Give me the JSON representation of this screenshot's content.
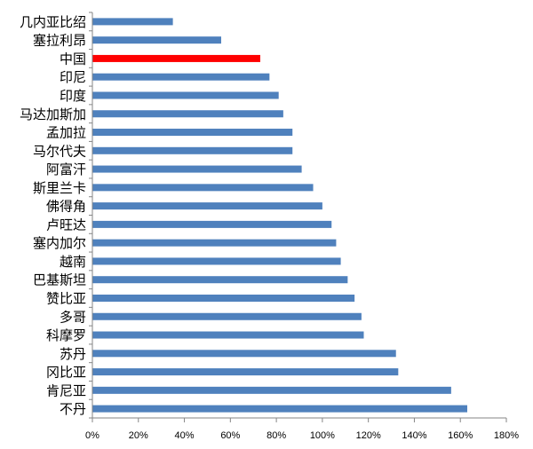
{
  "chart_data": {
    "type": "bar",
    "orientation": "horizontal",
    "categories": [
      "几内亚比绍",
      "塞拉利昂",
      "中国",
      "印尼",
      "印度",
      "马达加斯加",
      "孟加拉",
      "马尔代夫",
      "阿富汗",
      "斯里兰卡",
      "佛得角",
      "卢旺达",
      "塞内加尔",
      "越南",
      "巴基斯坦",
      "赞比亚",
      "多哥",
      "科摩罗",
      "苏丹",
      "冈比亚",
      "肯尼亚",
      "不丹"
    ],
    "values": [
      35,
      56,
      73,
      77,
      81,
      83,
      87,
      87,
      91,
      96,
      100,
      104,
      106,
      108,
      111,
      114,
      117,
      118,
      132,
      133,
      156,
      163
    ],
    "xlim": [
      0,
      180
    ],
    "xticks": [
      0,
      20,
      40,
      60,
      80,
      100,
      120,
      140,
      160,
      180
    ],
    "xtick_labels": [
      "0%",
      "20%",
      "40%",
      "60%",
      "80%",
      "100%",
      "120%",
      "140%",
      "160%",
      "180%"
    ],
    "highlight_category": "中国",
    "grid": false,
    "legend": "none",
    "colors": {
      "bar": "#4f81bd",
      "highlight": "#ff0000",
      "axis": "#868686",
      "text": "#000000"
    }
  }
}
